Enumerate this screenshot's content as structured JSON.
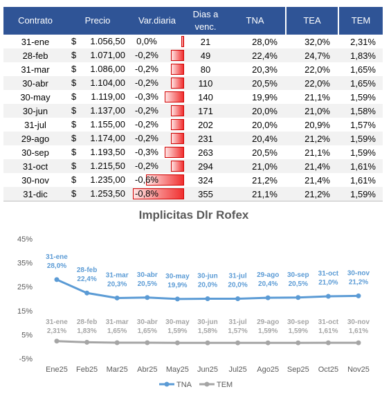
{
  "table": {
    "headers": {
      "contract": "Contrato",
      "price": "Precio",
      "var": "Var.diaria",
      "days_line1": "Dias a",
      "days_line2": "venc.",
      "tna": "TNA",
      "tea": "TEA",
      "tem": "TEM"
    },
    "rows": [
      {
        "contract": "31-ene",
        "currency": "$",
        "price": "1.056,50",
        "var": "0,0%",
        "var_value": 0.0,
        "days": "21",
        "tna": "28,0%",
        "tea": "32,0%",
        "tem": "2,31%"
      },
      {
        "contract": "28-feb",
        "currency": "$",
        "price": "1.071,00",
        "var": "-0,2%",
        "var_value": -0.2,
        "days": "49",
        "tna": "22,4%",
        "tea": "24,7%",
        "tem": "1,83%"
      },
      {
        "contract": "31-mar",
        "currency": "$",
        "price": "1.086,00",
        "var": "-0,2%",
        "var_value": -0.2,
        "days": "80",
        "tna": "20,3%",
        "tea": "22,0%",
        "tem": "1,65%"
      },
      {
        "contract": "30-abr",
        "currency": "$",
        "price": "1.104,00",
        "var": "-0,2%",
        "var_value": -0.2,
        "days": "110",
        "tna": "20,5%",
        "tea": "22,0%",
        "tem": "1,65%"
      },
      {
        "contract": "30-may",
        "currency": "$",
        "price": "1.119,00",
        "var": "-0,3%",
        "var_value": -0.3,
        "days": "140",
        "tna": "19,9%",
        "tea": "21,1%",
        "tem": "1,59%"
      },
      {
        "contract": "30-jun",
        "currency": "$",
        "price": "1.137,00",
        "var": "-0,2%",
        "var_value": -0.2,
        "days": "171",
        "tna": "20,0%",
        "tea": "21,0%",
        "tem": "1,58%"
      },
      {
        "contract": "31-jul",
        "currency": "$",
        "price": "1.155,00",
        "var": "-0,2%",
        "var_value": -0.2,
        "days": "202",
        "tna": "20,0%",
        "tea": "20,9%",
        "tem": "1,57%"
      },
      {
        "contract": "29-ago",
        "currency": "$",
        "price": "1.174,00",
        "var": "-0,2%",
        "var_value": -0.2,
        "days": "231",
        "tna": "20,4%",
        "tea": "21,2%",
        "tem": "1,59%"
      },
      {
        "contract": "30-sep",
        "currency": "$",
        "price": "1.193,50",
        "var": "-0,3%",
        "var_value": -0.3,
        "days": "263",
        "tna": "20,5%",
        "tea": "21,1%",
        "tem": "1,59%"
      },
      {
        "contract": "31-oct",
        "currency": "$",
        "price": "1.215,50",
        "var": "-0,2%",
        "var_value": -0.2,
        "days": "294",
        "tna": "21,0%",
        "tea": "21,4%",
        "tem": "1,61%"
      },
      {
        "contract": "30-nov",
        "currency": "$",
        "price": "1.235,00",
        "var": "-0,6%",
        "var_value": -0.6,
        "days": "324",
        "tna": "21,2%",
        "tea": "21,4%",
        "tem": "1,61%"
      },
      {
        "contract": "31-dic",
        "currency": "$",
        "price": "1.253,50",
        "var": "-0,8%",
        "var_value": -0.8,
        "days": "355",
        "tna": "21,1%",
        "tea": "21,2%",
        "tem": "1,59%"
      }
    ],
    "bar_color": "#f03030"
  },
  "chart_data": {
    "type": "line",
    "title": "Implicitas Dlr Rofex",
    "categories": [
      "Ene25",
      "Feb25",
      "Mar25",
      "Abr25",
      "May25",
      "Jun25",
      "Jul25",
      "Ago25",
      "Sep25",
      "Oct25",
      "Nov25"
    ],
    "ytick_labels": [
      "45%",
      "35%",
      "25%",
      "15%",
      "5%",
      "-5%"
    ],
    "ylim": [
      -5,
      45
    ],
    "grid": false,
    "legend_position": "bottom",
    "series": [
      {
        "name": "TNA",
        "color": "#5b9bd5",
        "values": [
          28.0,
          22.4,
          20.3,
          20.5,
          19.9,
          20.0,
          20.0,
          20.4,
          20.5,
          21.0,
          21.2
        ],
        "point_labels": [
          "31-ene",
          "28-feb",
          "31-mar",
          "30-abr",
          "30-may",
          "30-jun",
          "31-jul",
          "29-ago",
          "30-sep",
          "31-oct",
          "30-nov"
        ],
        "value_labels": [
          "28,0%",
          "22,4%",
          "20,3%",
          "20,5%",
          "19,9%",
          "20,0%",
          "20,0%",
          "20,4%",
          "20,5%",
          "21,0%",
          "21,2%"
        ]
      },
      {
        "name": "TEM",
        "color": "#a5a5a5",
        "values": [
          2.31,
          1.83,
          1.65,
          1.65,
          1.59,
          1.58,
          1.57,
          1.59,
          1.59,
          1.61,
          1.61
        ],
        "point_labels": [
          "31-ene",
          "28-feb",
          "31-mar",
          "30-abr",
          "30-may",
          "30-jun",
          "31-jul",
          "29-ago",
          "30-sep",
          "31-oct",
          "30-nov"
        ],
        "value_labels": [
          "2,31%",
          "1,83%",
          "1,65%",
          "1,65%",
          "1,59%",
          "1,58%",
          "1,57%",
          "1,59%",
          "1,59%",
          "1,61%",
          "1,61%"
        ]
      }
    ]
  }
}
